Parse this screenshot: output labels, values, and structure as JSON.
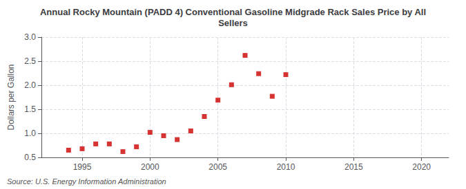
{
  "chart_data": {
    "type": "scatter",
    "title": "Annual Rocky Mountain (PADD 4) Conventional Gasoline Midgrade Rack Sales Price by All\nSellers",
    "y_label": "Dollars per Gallon",
    "annotations": [
      "Source: U.S. Energy Information Administration"
    ],
    "x": [
      1994,
      1995,
      1996,
      1997,
      1998,
      1999,
      2000,
      2001,
      2002,
      2003,
      2004,
      2005,
      2006,
      2007,
      2008,
      2009,
      2010
    ],
    "values": [
      0.65,
      0.68,
      0.78,
      0.78,
      0.62,
      0.72,
      1.02,
      0.95,
      0.87,
      1.05,
      1.35,
      1.69,
      2.01,
      2.62,
      2.24,
      1.77,
      2.22
    ],
    "color": "#CC0000",
    "marker": "square",
    "xlim": [
      1992,
      2022
    ],
    "xticks": [
      1995,
      2000,
      2005,
      2010,
      2015,
      2020
    ],
    "ylim": [
      0.5,
      3.0
    ],
    "yticks": [
      0.5,
      {
        "value": 1,
        "label": "1.0"
      },
      1.5,
      {
        "value": 2,
        "label": "2.0"
      },
      2.5,
      {
        "value": 3,
        "label": "3.0"
      }
    ],
    "grid": true
  }
}
